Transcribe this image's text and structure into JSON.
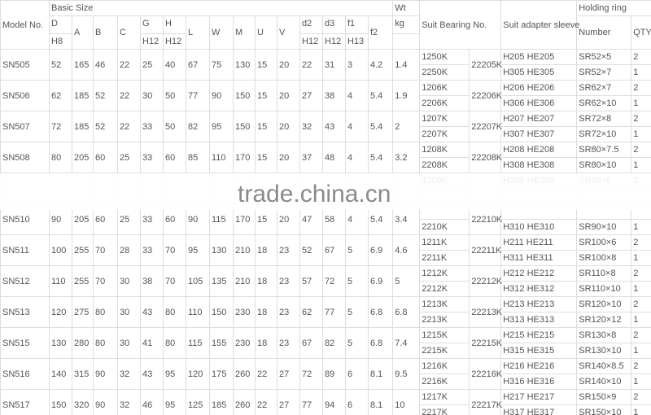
{
  "header": {
    "model": "Model No.",
    "basic_size": "Basic Size",
    "wt": "Wt",
    "kg": "kg",
    "cols": [
      "D",
      "A",
      "B",
      "C",
      "G",
      "H",
      "L",
      "W",
      "M",
      "U",
      "V",
      "d2",
      "d3",
      "f1",
      "f2"
    ],
    "subcols": {
      "D": "H8",
      "G": "H12",
      "H": "H12",
      "d2": "H12",
      "d3": "H12",
      "f1": "H13"
    },
    "suit_bearing": "Suit Bearing No.",
    "suit_sleeve": "Suit adapter sleeve",
    "holding_ring": "Holding ring",
    "ring_number": "Number",
    "ring_qty": "QTY"
  },
  "rows": [
    {
      "model": "SN505",
      "values": [
        "52",
        "165",
        "46",
        "22",
        "25",
        "40",
        "67",
        "75",
        "130",
        "15",
        "20",
        "22",
        "31",
        "3",
        "4.2",
        "1.4"
      ],
      "bearing2": "22205K",
      "sub": [
        {
          "bearing1": "1250K",
          "sleeve": "H205 HE205",
          "ring": "SR52×5",
          "qty": "2"
        },
        {
          "bearing1": "2250K",
          "sleeve": "H305 HE305",
          "ring": "SR52×7",
          "qty": "1"
        }
      ]
    },
    {
      "model": "SN506",
      "values": [
        "62",
        "185",
        "52",
        "22",
        "30",
        "50",
        "77",
        "90",
        "150",
        "15",
        "20",
        "27",
        "38",
        "4",
        "5.4",
        "1.9"
      ],
      "bearing2": "22206K",
      "sub": [
        {
          "bearing1": "1206K",
          "sleeve": "H206 HE206",
          "ring": "SR62×7",
          "qty": "2"
        },
        {
          "bearing1": "2206K",
          "sleeve": "H306 HE306",
          "ring": "SR62×10",
          "qty": "1"
        }
      ]
    },
    {
      "model": "SN507",
      "values": [
        "72",
        "185",
        "52",
        "22",
        "33",
        "50",
        "82",
        "95",
        "150",
        "15",
        "20",
        "32",
        "43",
        "4",
        "5.4",
        "2"
      ],
      "bearing2": "22207K",
      "sub": [
        {
          "bearing1": "1207K",
          "sleeve": "H207 HE207",
          "ring": "SR72×8",
          "qty": "2"
        },
        {
          "bearing1": "2207K",
          "sleeve": "H307 HE307",
          "ring": "SR72×10",
          "qty": "1"
        }
      ]
    },
    {
      "model": "SN508",
      "values": [
        "80",
        "205",
        "60",
        "25",
        "33",
        "60",
        "85",
        "110",
        "170",
        "15",
        "20",
        "37",
        "48",
        "4",
        "5.4",
        "3.2"
      ],
      "bearing2": "22208K",
      "sub": [
        {
          "bearing1": "1208K",
          "sleeve": "H208 HE208",
          "ring": "SR80×7.5",
          "qty": "2"
        },
        {
          "bearing1": "2208K",
          "sleeve": "H308 HE308",
          "ring": "SR80×10",
          "qty": "1"
        }
      ]
    },
    {
      "model": "",
      "values": [
        "",
        "",
        "",
        "",
        "",
        "",
        "",
        "",
        "",
        "",
        "",
        "",
        "",
        "",
        "",
        ""
      ],
      "bearing2": "",
      "sub": [
        {
          "bearing1": "1209K",
          "sleeve": "H209 HE209",
          "ring": "SR85×6",
          "qty": "2"
        },
        {
          "bearing1": "",
          "sleeve": "",
          "ring": "",
          "qty": ""
        }
      ]
    },
    {
      "model": "SN510",
      "values": [
        "90",
        "205",
        "60",
        "25",
        "33",
        "60",
        "90",
        "115",
        "170",
        "15",
        "20",
        "47",
        "58",
        "4",
        "5.4",
        "3.4"
      ],
      "bearing2": "22210K",
      "sub": [
        {
          "bearing1": "",
          "sleeve": "",
          "ring": "",
          "qty": ""
        },
        {
          "bearing1": "2210K",
          "sleeve": "H310 HE310",
          "ring": "SR90×10",
          "qty": "1"
        }
      ]
    },
    {
      "model": "SN511",
      "values": [
        "100",
        "255",
        "70",
        "28",
        "33",
        "70",
        "95",
        "130",
        "210",
        "18",
        "23",
        "52",
        "67",
        "5",
        "6.9",
        "4.6"
      ],
      "bearing2": "22211K",
      "sub": [
        {
          "bearing1": "1211K",
          "sleeve": "H211 HE211",
          "ring": "SR100×6",
          "qty": "2"
        },
        {
          "bearing1": "2211K",
          "sleeve": "H311 HE311",
          "ring": "SR100×8",
          "qty": "1"
        }
      ]
    },
    {
      "model": "SN512",
      "values": [
        "110",
        "255",
        "70",
        "30",
        "38",
        "70",
        "105",
        "135",
        "210",
        "18",
        "23",
        "57",
        "72",
        "5",
        "6.9",
        "5"
      ],
      "bearing2": "22212K",
      "sub": [
        {
          "bearing1": "1212K",
          "sleeve": "H212 HE212",
          "ring": "SR110×8",
          "qty": "2"
        },
        {
          "bearing1": "2212K",
          "sleeve": "H312 HE312",
          "ring": "SR110×10",
          "qty": "1"
        }
      ]
    },
    {
      "model": "SN513",
      "values": [
        "120",
        "275",
        "80",
        "30",
        "43",
        "80",
        "110",
        "150",
        "230",
        "18",
        "23",
        "62",
        "77",
        "5",
        "6.8",
        "6.8"
      ],
      "bearing2": "22213K",
      "sub": [
        {
          "bearing1": "1213K",
          "sleeve": "H213 HE213",
          "ring": "SR120×10",
          "qty": "2"
        },
        {
          "bearing1": "2213K",
          "sleeve": "H313 HE313",
          "ring": "SR120×12",
          "qty": "1"
        }
      ]
    },
    {
      "model": "SN515",
      "values": [
        "130",
        "280",
        "80",
        "30",
        "41",
        "80",
        "115",
        "155",
        "230",
        "18",
        "23",
        "67",
        "82",
        "5",
        "6.8",
        "7.4"
      ],
      "bearing2": "22215K",
      "sub": [
        {
          "bearing1": "1215K",
          "sleeve": "H215 HE215",
          "ring": "SR130×8",
          "qty": "2"
        },
        {
          "bearing1": "2215K",
          "sleeve": "H315 HE315",
          "ring": "SR130×10",
          "qty": "1"
        }
      ]
    },
    {
      "model": "SN516",
      "values": [
        "140",
        "315",
        "90",
        "32",
        "43",
        "95",
        "120",
        "175",
        "260",
        "22",
        "27",
        "72",
        "89",
        "6",
        "8.1",
        "9.5"
      ],
      "bearing2": "22216K",
      "sub": [
        {
          "bearing1": "1216K",
          "sleeve": "H216 HE216",
          "ring": "SR140×8.5",
          "qty": "2"
        },
        {
          "bearing1": "2216K",
          "sleeve": "H316 HE316",
          "ring": "SR140×10",
          "qty": "1"
        }
      ]
    },
    {
      "model": "SN517",
      "values": [
        "150",
        "320",
        "90",
        "32",
        "46",
        "95",
        "125",
        "185",
        "260",
        "22",
        "27",
        "77",
        "94",
        "6",
        "8.1",
        "10"
      ],
      "bearing2": "22217K",
      "sub": [
        {
          "bearing1": "1217K",
          "sleeve": "H217 HE217",
          "ring": "SR150×9",
          "qty": "2"
        },
        {
          "bearing1": "2217K",
          "sleeve": "H317 HE317",
          "ring": "SR150×10",
          "qty": "1"
        }
      ]
    }
  ],
  "watermark": "trade.china.cn"
}
